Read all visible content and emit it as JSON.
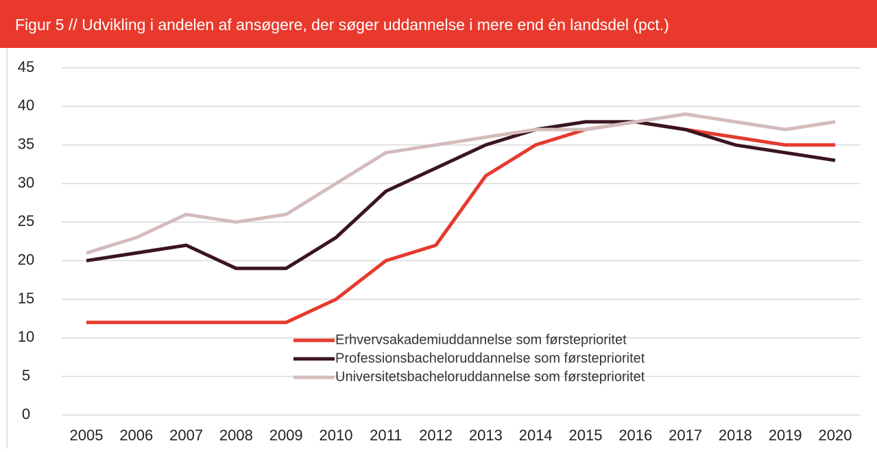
{
  "chart_data": {
    "type": "line",
    "title": "Figur 5 // Udvikling i andelen af ansøgere, der søger uddannelse i mere end én landsdel (pct.)",
    "categories": [
      "2005",
      "2006",
      "2007",
      "2008",
      "2009",
      "2010",
      "2011",
      "2012",
      "2013",
      "2014",
      "2015",
      "2016",
      "2017",
      "2018",
      "2019",
      "2020"
    ],
    "series": [
      {
        "name": "Erhvervsakademiuddannelse som førsteprioritet",
        "color": "#e63a2e",
        "values": [
          12,
          12,
          12,
          12,
          12,
          15,
          20,
          22,
          31,
          35,
          37,
          38,
          37,
          36,
          35,
          35
        ]
      },
      {
        "name": "Professionsbacheloruddannelse som førsteprioritet",
        "color": "#3a1520",
        "values": [
          20,
          21,
          22,
          19,
          19,
          23,
          29,
          32,
          35,
          37,
          38,
          38,
          37,
          35,
          34,
          33
        ]
      },
      {
        "name": "Universitetsbacheloruddannelse som førsteprioritet",
        "color": "#d4bcbc",
        "values": [
          21,
          23,
          26,
          25,
          26,
          30,
          34,
          35,
          36,
          37,
          37,
          38,
          39,
          38,
          37,
          38
        ]
      }
    ],
    "ylim": [
      0,
      45
    ],
    "yticks": [
      0,
      5,
      10,
      15,
      20,
      25,
      30,
      35,
      40,
      45
    ],
    "grid": true
  }
}
